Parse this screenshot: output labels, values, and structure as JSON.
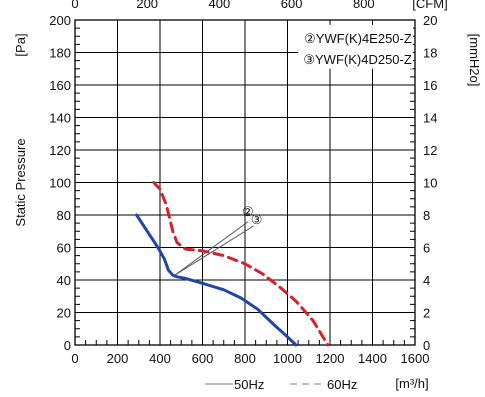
{
  "chart_data": {
    "type": "line",
    "y_label": "Static Pressure",
    "y_unit_left": "[Pa]",
    "y_unit_right": "[mmH2o]",
    "x_unit_top": "[CFM]",
    "x_unit_bottom": "[m³/h]",
    "xlim": [
      0,
      1600
    ],
    "ylim": [
      0,
      200
    ],
    "x_ticks": [
      0,
      200,
      400,
      600,
      800,
      1000,
      1200,
      1400,
      1600
    ],
    "y_ticks": [
      0,
      20,
      40,
      60,
      80,
      100,
      120,
      140,
      160,
      180,
      200
    ],
    "top_ticks": [
      {
        "label": "0",
        "value": 0
      },
      {
        "label": "200",
        "value": 200
      },
      {
        "label": "400",
        "value": 400
      },
      {
        "label": "600",
        "value": 600
      },
      {
        "label": "800",
        "value": 800
      }
    ],
    "right_ticks": [
      {
        "label": "0",
        "value": 0
      },
      {
        "label": "2",
        "value": 2
      },
      {
        "label": "4",
        "value": 4
      },
      {
        "label": "6",
        "value": 6
      },
      {
        "label": "8",
        "value": 8
      },
      {
        "label": "10",
        "value": 10
      },
      {
        "label": "12",
        "value": 12
      },
      {
        "label": "14",
        "value": 14
      },
      {
        "label": "16",
        "value": 16
      },
      {
        "label": "18",
        "value": 18
      },
      {
        "label": "20",
        "value": 20
      }
    ],
    "legend_models": [
      "②YWF(K)4E250-Z",
      "③YWF(K)4D250-Z"
    ],
    "legend_lines": [
      "50Hz",
      "60Hz"
    ],
    "series": [
      {
        "name": "②YWF(K)4E250-Z",
        "color": "#2046a8",
        "dash": "solid",
        "x": [
          290,
          340,
          390,
          420,
          440,
          460,
          480,
          520,
          600,
          700,
          780,
          860,
          940,
          1000,
          1040
        ],
        "y": [
          80,
          70,
          60,
          53,
          46,
          43,
          42,
          41,
          38,
          34,
          29,
          22,
          12,
          5,
          0
        ]
      },
      {
        "name": "③YWF(K)4D250-Z",
        "color": "#d8202a",
        "dash": "dashed",
        "x": [
          370,
          400,
          430,
          460,
          480,
          520,
          600,
          700,
          800,
          880,
          960,
          1040,
          1120,
          1190
        ],
        "y": [
          100,
          96,
          86,
          70,
          63,
          59,
          58,
          55,
          50,
          44,
          36,
          27,
          15,
          0
        ]
      }
    ],
    "annotations": [
      {
        "label": "②",
        "x": 795,
        "y": 82
      },
      {
        "label": "③",
        "x": 855,
        "y": 77
      }
    ]
  }
}
